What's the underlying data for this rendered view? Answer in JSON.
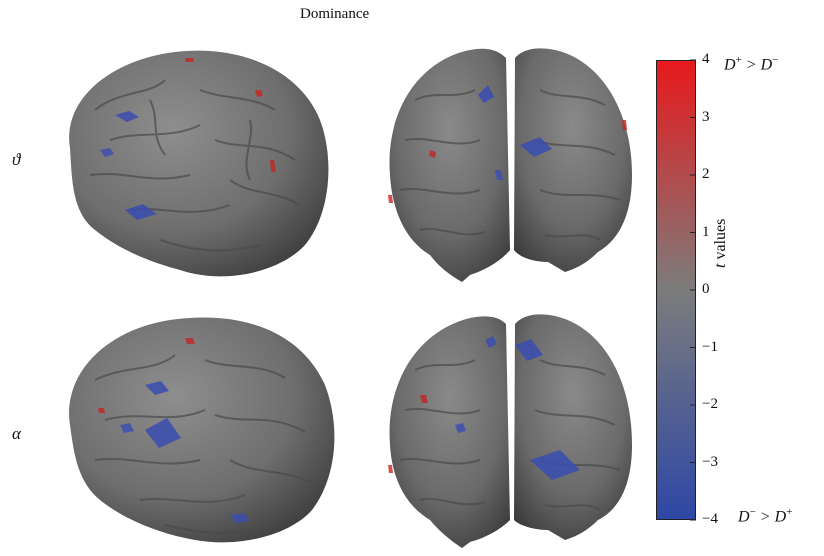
{
  "figure": {
    "title": "Dominance",
    "rows": [
      {
        "label": "ϑ"
      },
      {
        "label": "α"
      }
    ],
    "views": [
      "lateral",
      "posterior"
    ]
  },
  "colorbar": {
    "min": -4,
    "max": 4,
    "ticks": [
      "4",
      "3",
      "2",
      "1",
      "0",
      "−1",
      "−2",
      "−3",
      "−4"
    ],
    "label_italic": "t",
    "label_rest": " values",
    "colors": {
      "high": "#e8191c",
      "mid": "#7c7c7c",
      "low": "#2e47a5"
    },
    "top_contrast": {
      "a": "D",
      "a_sup": "+",
      "op": " > ",
      "b": "D",
      "b_sup": "−"
    },
    "bottom_contrast": {
      "a": "D",
      "a_sup": "−",
      "op": " > ",
      "b": "D",
      "b_sup": "+"
    }
  }
}
